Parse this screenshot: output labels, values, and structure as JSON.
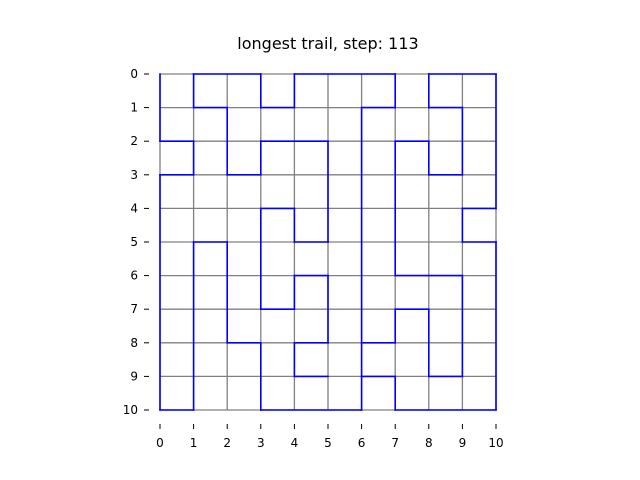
{
  "chart_data": {
    "type": "line",
    "title": "longest trail, step: 113",
    "xlim": [
      0,
      10
    ],
    "ylim": [
      0,
      10
    ],
    "y_inverted": true,
    "x_ticks": [
      0,
      1,
      2,
      3,
      4,
      5,
      6,
      7,
      8,
      9,
      10
    ],
    "y_ticks": [
      0,
      1,
      2,
      3,
      4,
      5,
      6,
      7,
      8,
      9,
      10
    ],
    "grid_lines": true,
    "grid_color": "#808080",
    "series": [
      {
        "color": "#0000ff",
        "points": [
          [
            0,
            0
          ],
          [
            0,
            2
          ],
          [
            1,
            2
          ],
          [
            1,
            3
          ],
          [
            0,
            3
          ],
          [
            0,
            10
          ],
          [
            1,
            10
          ],
          [
            1,
            5
          ],
          [
            2,
            5
          ],
          [
            2,
            8
          ],
          [
            3,
            8
          ],
          [
            3,
            10
          ],
          [
            6,
            10
          ],
          [
            6,
            9
          ],
          [
            7,
            9
          ],
          [
            7,
            10
          ],
          [
            10,
            10
          ],
          [
            10,
            5
          ],
          [
            9,
            5
          ],
          [
            9,
            4
          ],
          [
            10,
            4
          ],
          [
            10,
            0
          ],
          [
            8,
            0
          ],
          [
            8,
            1
          ],
          [
            9,
            1
          ],
          [
            9,
            3
          ],
          [
            8,
            3
          ],
          [
            8,
            2
          ],
          [
            7,
            2
          ],
          [
            7,
            7
          ],
          [
            8,
            7
          ],
          [
            8,
            9
          ],
          [
            9,
            9
          ],
          [
            9,
            6
          ],
          [
            7,
            6
          ],
          [
            7,
            0
          ],
          [
            6,
            0
          ],
          [
            6,
            1
          ],
          [
            6,
            8
          ],
          [
            7,
            8
          ],
          [
            7,
            9
          ],
          [
            6,
            9
          ],
          [
            6,
            10
          ],
          [
            6,
            9
          ],
          [
            6,
            8
          ],
          [
            7,
            8
          ]
        ]
      }
    ],
    "extra_segments": [
      [
        [
          0,
          0
        ],
        [
          0,
          2
        ]
      ],
      [
        [
          1,
          0
        ],
        [
          1,
          1
        ]
      ],
      [
        [
          1,
          0
        ],
        [
          3,
          0
        ]
      ],
      [
        [
          1,
          1
        ],
        [
          2,
          1
        ]
      ],
      [
        [
          2,
          1
        ],
        [
          2,
          3
        ]
      ],
      [
        [
          2,
          3
        ],
        [
          3,
          3
        ]
      ],
      [
        [
          3,
          3
        ],
        [
          3,
          2
        ]
      ],
      [
        [
          3,
          2
        ],
        [
          5,
          2
        ]
      ],
      [
        [
          5,
          2
        ],
        [
          5,
          5
        ]
      ],
      [
        [
          5,
          5
        ],
        [
          4,
          5
        ]
      ],
      [
        [
          4,
          5
        ],
        [
          4,
          4
        ]
      ],
      [
        [
          4,
          4
        ],
        [
          3,
          4
        ]
      ],
      [
        [
          3,
          4
        ],
        [
          3,
          7
        ]
      ],
      [
        [
          3,
          7
        ],
        [
          4,
          7
        ]
      ],
      [
        [
          4,
          7
        ],
        [
          4,
          6
        ]
      ],
      [
        [
          4,
          6
        ],
        [
          5,
          6
        ]
      ],
      [
        [
          5,
          6
        ],
        [
          5,
          8
        ]
      ],
      [
        [
          5,
          8
        ],
        [
          4,
          8
        ]
      ],
      [
        [
          4,
          8
        ],
        [
          4,
          9
        ]
      ],
      [
        [
          4,
          9
        ],
        [
          5,
          9
        ]
      ],
      [
        [
          3,
          0
        ],
        [
          3,
          1
        ]
      ],
      [
        [
          3,
          1
        ],
        [
          4,
          1
        ]
      ],
      [
        [
          4,
          1
        ],
        [
          4,
          0
        ]
      ],
      [
        [
          4,
          0
        ],
        [
          7,
          0
        ]
      ],
      [
        [
          7,
          0
        ],
        [
          7,
          1
        ]
      ],
      [
        [
          7,
          1
        ],
        [
          6,
          1
        ]
      ],
      [
        [
          6,
          1
        ],
        [
          6,
          8
        ]
      ],
      [
        [
          6,
          8
        ],
        [
          7,
          8
        ]
      ],
      [
        [
          7,
          8
        ],
        [
          7,
          9
        ]
      ],
      [
        [
          7,
          9
        ],
        [
          6,
          9
        ]
      ],
      [
        [
          7,
          1
        ],
        [
          7,
          2
        ]
      ]
    ]
  }
}
